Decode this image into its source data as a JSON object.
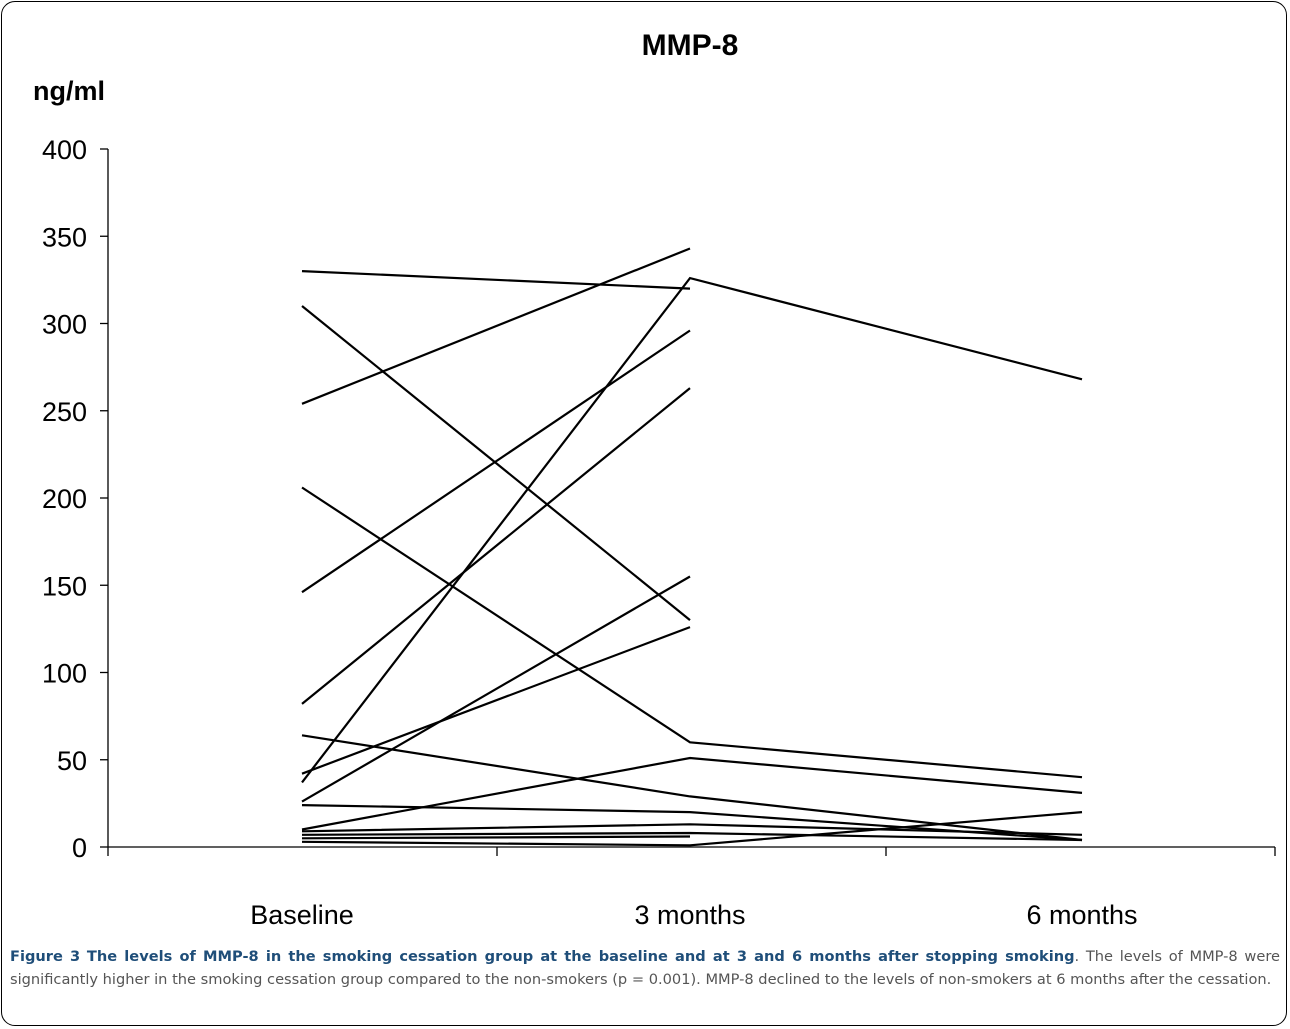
{
  "chart_data": {
    "type": "line",
    "title": "MMP-8",
    "ylabel": "ng/ml",
    "xlabel": "",
    "categories": [
      "Baseline",
      "3 months",
      "6 months"
    ],
    "ylim": [
      0,
      400
    ],
    "yticks": [
      0,
      50,
      100,
      150,
      200,
      250,
      300,
      350,
      400
    ],
    "grid": false,
    "legend": "none",
    "line_color": "#000000",
    "series": [
      {
        "values": [
          330,
          320,
          null
        ]
      },
      {
        "values": [
          310,
          130,
          null
        ]
      },
      {
        "values": [
          254,
          343,
          null
        ]
      },
      {
        "values": [
          206,
          60,
          40
        ]
      },
      {
        "values": [
          146,
          296,
          null
        ]
      },
      {
        "values": [
          82,
          263,
          null
        ]
      },
      {
        "values": [
          64,
          29,
          4
        ]
      },
      {
        "values": [
          42,
          126,
          null
        ]
      },
      {
        "values": [
          37,
          326,
          268
        ]
      },
      {
        "values": [
          26,
          155,
          null
        ]
      },
      {
        "values": [
          24,
          20,
          4
        ]
      },
      {
        "values": [
          10,
          51,
          31
        ]
      },
      {
        "values": [
          9,
          13,
          7
        ]
      },
      {
        "values": [
          7,
          8,
          4
        ]
      },
      {
        "values": [
          5,
          6,
          null
        ]
      },
      {
        "values": [
          3,
          1,
          20
        ]
      }
    ]
  },
  "caption": {
    "label": "Figure 3",
    "headline": "The levels of MMP-8 in the smoking cessation group at the baseline and at 3 and 6 months after stopping smoking",
    "body": ". The levels of MMP-8 were significantly higher in the smoking cessation group compared to the non-smokers (p = 0.001). MMP-8 declined to the levels of non-smokers at 6 months after the cessation."
  }
}
